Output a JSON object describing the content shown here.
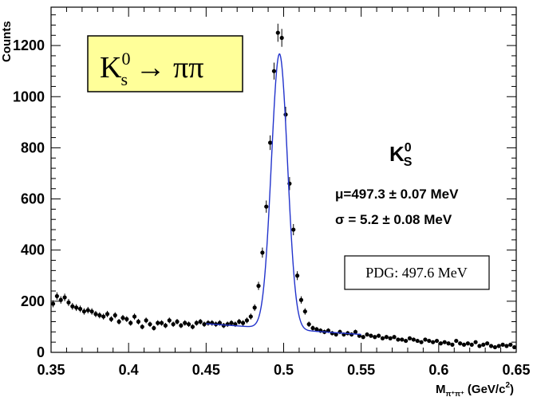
{
  "chart_data": {
    "type": "scatter",
    "xlabel": "M",
    "xlabel_sub": "π⁺π⁺",
    "xlabel_unit": " (GeV/c",
    "xlabel_unit_sup": "2",
    "xlabel_unit_end": ")",
    "ylabel": "Counts",
    "xlim": [
      0.35,
      0.65
    ],
    "ylim": [
      0,
      1350
    ],
    "xticks": [
      "0.35",
      "0.4",
      "0.45",
      "0.5",
      "0.55",
      "0.6",
      "0.65"
    ],
    "yticks": [
      "0",
      "200",
      "400",
      "600",
      "800",
      "1000",
      "1200"
    ],
    "grid": false,
    "fit_range": [
      0.45,
      0.55
    ],
    "fit_background": [
      112,
      70
    ],
    "fit_peak": {
      "mu": 0.4973,
      "sigma": 0.0052,
      "height": 1075
    },
    "points": {
      "x": [
        0.3513,
        0.3538,
        0.3563,
        0.3588,
        0.3613,
        0.3638,
        0.3663,
        0.3688,
        0.3713,
        0.3738,
        0.3763,
        0.3788,
        0.3813,
        0.3838,
        0.3863,
        0.3888,
        0.3913,
        0.3938,
        0.3963,
        0.3988,
        0.4013,
        0.4038,
        0.4063,
        0.4088,
        0.4113,
        0.4138,
        0.4163,
        0.4188,
        0.4213,
        0.4238,
        0.4263,
        0.4288,
        0.4313,
        0.4338,
        0.4363,
        0.4388,
        0.4413,
        0.4438,
        0.4463,
        0.4488,
        0.4513,
        0.4538,
        0.4563,
        0.4588,
        0.4613,
        0.4638,
        0.4663,
        0.4688,
        0.4713,
        0.4738,
        0.4763,
        0.4788,
        0.4813,
        0.4838,
        0.4863,
        0.4888,
        0.4913,
        0.4938,
        0.4963,
        0.4988,
        0.5013,
        0.5038,
        0.5063,
        0.5088,
        0.5113,
        0.5138,
        0.5163,
        0.5188,
        0.5213,
        0.5238,
        0.5263,
        0.5288,
        0.5313,
        0.5338,
        0.5363,
        0.5388,
        0.5413,
        0.5438,
        0.5463,
        0.5488,
        0.5513,
        0.5538,
        0.5563,
        0.5588,
        0.5613,
        0.5638,
        0.5663,
        0.5688,
        0.5713,
        0.5738,
        0.5763,
        0.5788,
        0.5813,
        0.5838,
        0.5863,
        0.5888,
        0.5913,
        0.5938,
        0.5963,
        0.5988,
        0.6013,
        0.6038,
        0.6063,
        0.6088,
        0.6113,
        0.6138,
        0.6163,
        0.6188,
        0.6213,
        0.6238,
        0.6263,
        0.6288,
        0.6313,
        0.6338,
        0.6363,
        0.6388,
        0.6413,
        0.6438,
        0.6463,
        0.6488
      ],
      "y": [
        190,
        220,
        205,
        215,
        195,
        180,
        175,
        170,
        160,
        165,
        160,
        150,
        145,
        140,
        150,
        130,
        145,
        120,
        135,
        130,
        115,
        140,
        120,
        100,
        125,
        110,
        95,
        115,
        115,
        105,
        125,
        110,
        120,
        105,
        115,
        110,
        100,
        115,
        120,
        110,
        115,
        115,
        110,
        115,
        105,
        110,
        115,
        110,
        120,
        115,
        125,
        140,
        175,
        260,
        390,
        570,
        820,
        1100,
        1250,
        1230,
        930,
        660,
        480,
        300,
        205,
        160,
        110,
        95,
        90,
        85,
        80,
        85,
        75,
        70,
        80,
        70,
        75,
        70,
        80,
        65,
        60,
        70,
        65,
        60,
        65,
        55,
        60,
        55,
        60,
        50,
        50,
        45,
        55,
        50,
        45,
        40,
        50,
        45,
        40,
        45,
        35,
        40,
        35,
        30,
        45,
        35,
        30,
        35,
        30,
        40,
        25,
        30,
        35,
        25,
        20,
        25,
        30,
        25,
        30,
        20
      ]
    }
  },
  "title_box": {
    "main": "K",
    "sup": "0",
    "sub": "s",
    "arrow": " → ",
    "products": "ππ",
    "bg_color": "#ffff99"
  },
  "annotation": {
    "particle": "K",
    "particle_sup": "0",
    "particle_sub": "S",
    "mu_line": "μ=497.3 ± 0.07 MeV",
    "sigma_line": "σ = 5.2 ± 0.08 MeV"
  },
  "pdg_box": {
    "text": "PDG: 497.6 MeV"
  },
  "colors": {
    "fit": "#2233cc",
    "markers": "#000000",
    "frame": "#000000"
  }
}
